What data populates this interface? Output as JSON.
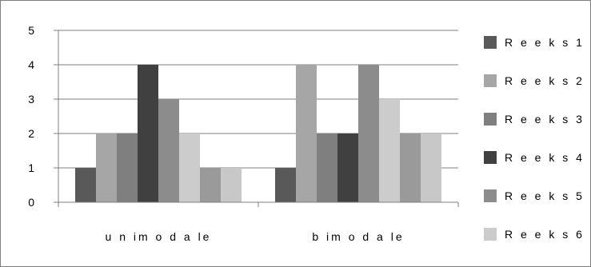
{
  "chart_data": {
    "type": "bar",
    "categories": [
      "u n im o d a le",
      "b im o d a le"
    ],
    "series": [
      {
        "name": "R e e k s 1",
        "values": [
          1,
          1
        ],
        "color": "#595959"
      },
      {
        "name": "R e e k s 2",
        "values": [
          2,
          4
        ],
        "color": "#a6a6a6"
      },
      {
        "name": "R e e k s 3",
        "values": [
          2,
          2
        ],
        "color": "#7f7f7f"
      },
      {
        "name": "R e e k s 4",
        "values": [
          4,
          2
        ],
        "color": "#404040"
      },
      {
        "name": "R e e k s 5",
        "values": [
          3,
          4
        ],
        "color": "#8c8c8c"
      },
      {
        "name": "R e e k s 6",
        "values": [
          2,
          3
        ],
        "color": "#cccccc"
      },
      {
        "name": "",
        "values": [
          1,
          2
        ],
        "color": "#9a9a9a"
      },
      {
        "name": "",
        "values": [
          1,
          2
        ],
        "color": "#c8c8c8"
      }
    ],
    "ylim": [
      0,
      5
    ],
    "yticks": [
      "0",
      "1",
      "2",
      "3",
      "4",
      "5"
    ],
    "grid": true,
    "legend": "right",
    "title": "",
    "xlabel": "",
    "ylabel": ""
  }
}
